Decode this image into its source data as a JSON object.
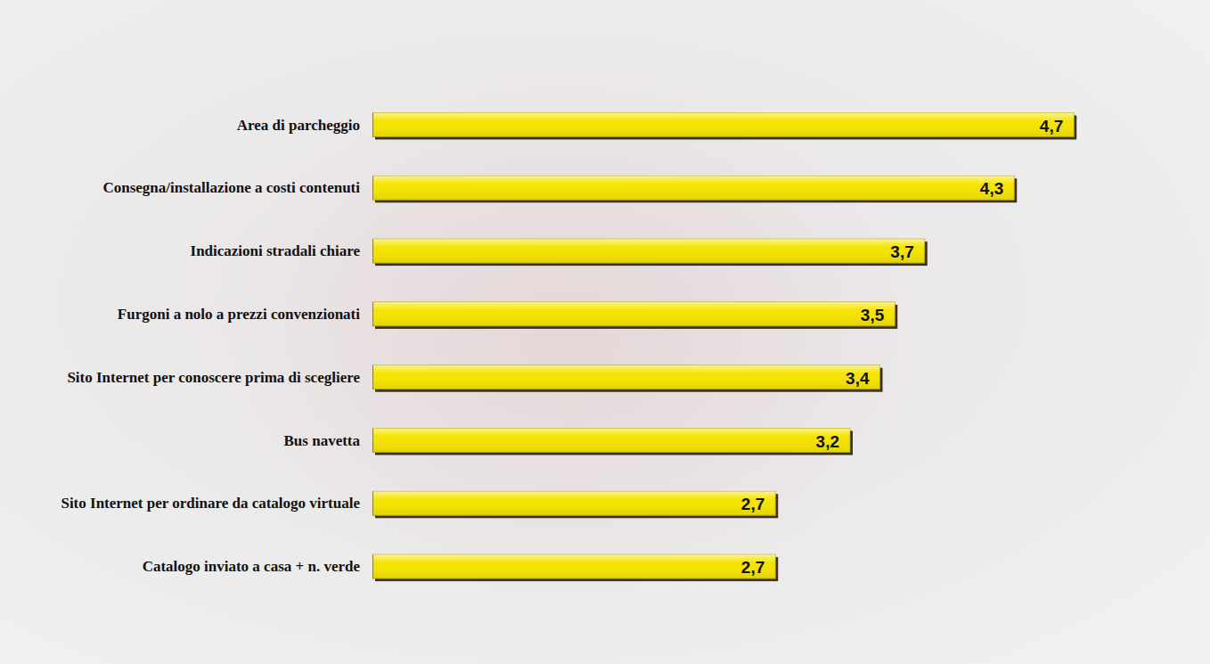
{
  "chart_data": {
    "type": "bar",
    "orientation": "horizontal",
    "categories": [
      "Area di parcheggio",
      "Consegna/installazione a costi contenuti",
      "Indicazioni stradali chiare",
      "Furgoni a nolo a prezzi convenzionati",
      "Sito Internet per conoscere prima di scegliere",
      "Bus navetta",
      "Sito Internet per ordinare da catalogo virtuale",
      "Catalogo inviato a casa + n. verde"
    ],
    "values": [
      4.7,
      4.3,
      3.7,
      3.5,
      3.4,
      3.2,
      2.7,
      2.7
    ],
    "value_labels": [
      "4,7",
      "4,3",
      "3,7",
      "3,5",
      "3,4",
      "3,2",
      "2,7",
      "2,7"
    ],
    "color": "#f5e400",
    "xlim": [
      0,
      5
    ],
    "data_labels": true,
    "tick_labels": false,
    "grid": false
  }
}
